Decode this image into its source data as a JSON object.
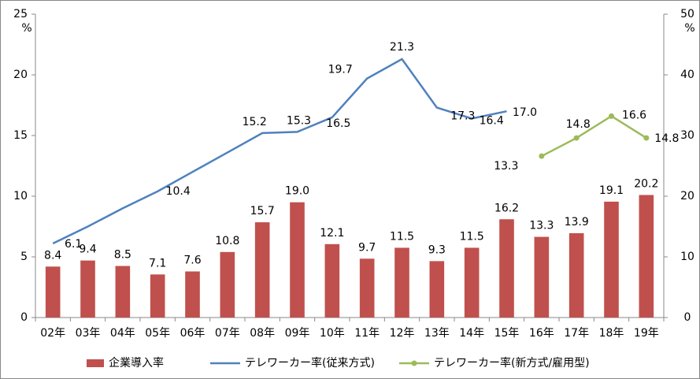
{
  "chart_data": {
    "type": "bar-line",
    "categories": [
      "02年",
      "03年",
      "04年",
      "05年",
      "06年",
      "07年",
      "08年",
      "09年",
      "10年",
      "11年",
      "12年",
      "13年",
      "14年",
      "15年",
      "16年",
      "17年",
      "18年",
      "19年"
    ],
    "ylim": [
      0,
      25
    ],
    "yticks": [
      0,
      5,
      10,
      15,
      20,
      25
    ],
    "y_unit": "%",
    "y2lim": [
      0,
      50
    ],
    "y2ticks": [
      0,
      10,
      20,
      30,
      40,
      50
    ],
    "y2_unit": "%",
    "series": [
      {
        "name": "企業導入率",
        "type": "bar",
        "axis": "y2",
        "color": "#c0504d",
        "values": [
          8.4,
          9.4,
          8.5,
          7.1,
          7.6,
          10.8,
          15.7,
          19.0,
          12.1,
          9.7,
          11.5,
          9.3,
          11.5,
          16.2,
          13.3,
          13.9,
          19.1,
          20.2
        ],
        "value_labels": [
          "8.4",
          "9.4",
          "8.5",
          "7.1",
          "7.6",
          "10.8",
          "15.7",
          "19.0",
          "12.1",
          "9.7",
          "11.5",
          "9.3",
          "11.5",
          "16.2",
          "13.3",
          "13.9",
          "19.1",
          "20.2"
        ]
      },
      {
        "name": "テレワーカー率(従来方式)",
        "type": "line",
        "color": "#4f81bd",
        "values": [
          6.1,
          7.5,
          9.0,
          10.4,
          12.0,
          13.6,
          15.2,
          15.3,
          16.5,
          19.7,
          21.3,
          17.3,
          16.4,
          17.0,
          null,
          null,
          null,
          null
        ],
        "value_labels": [
          "6.1",
          null,
          null,
          "10.4",
          null,
          null,
          "15.2",
          "15.3",
          "16.5",
          "19.7",
          "21.3",
          "17.3",
          "16.4",
          "17.0",
          null,
          null,
          null,
          null
        ]
      },
      {
        "name": "テレワーカー率(新方式/雇用型)",
        "type": "line",
        "color": "#9bbb59",
        "markers": true,
        "values": [
          null,
          null,
          null,
          null,
          null,
          null,
          null,
          null,
          null,
          null,
          null,
          null,
          null,
          null,
          13.3,
          14.8,
          16.6,
          14.8
        ],
        "value_labels": [
          null,
          null,
          null,
          null,
          null,
          null,
          null,
          null,
          null,
          null,
          null,
          null,
          null,
          null,
          "13.3",
          "14.8",
          "16.6",
          "14.8"
        ]
      }
    ]
  }
}
